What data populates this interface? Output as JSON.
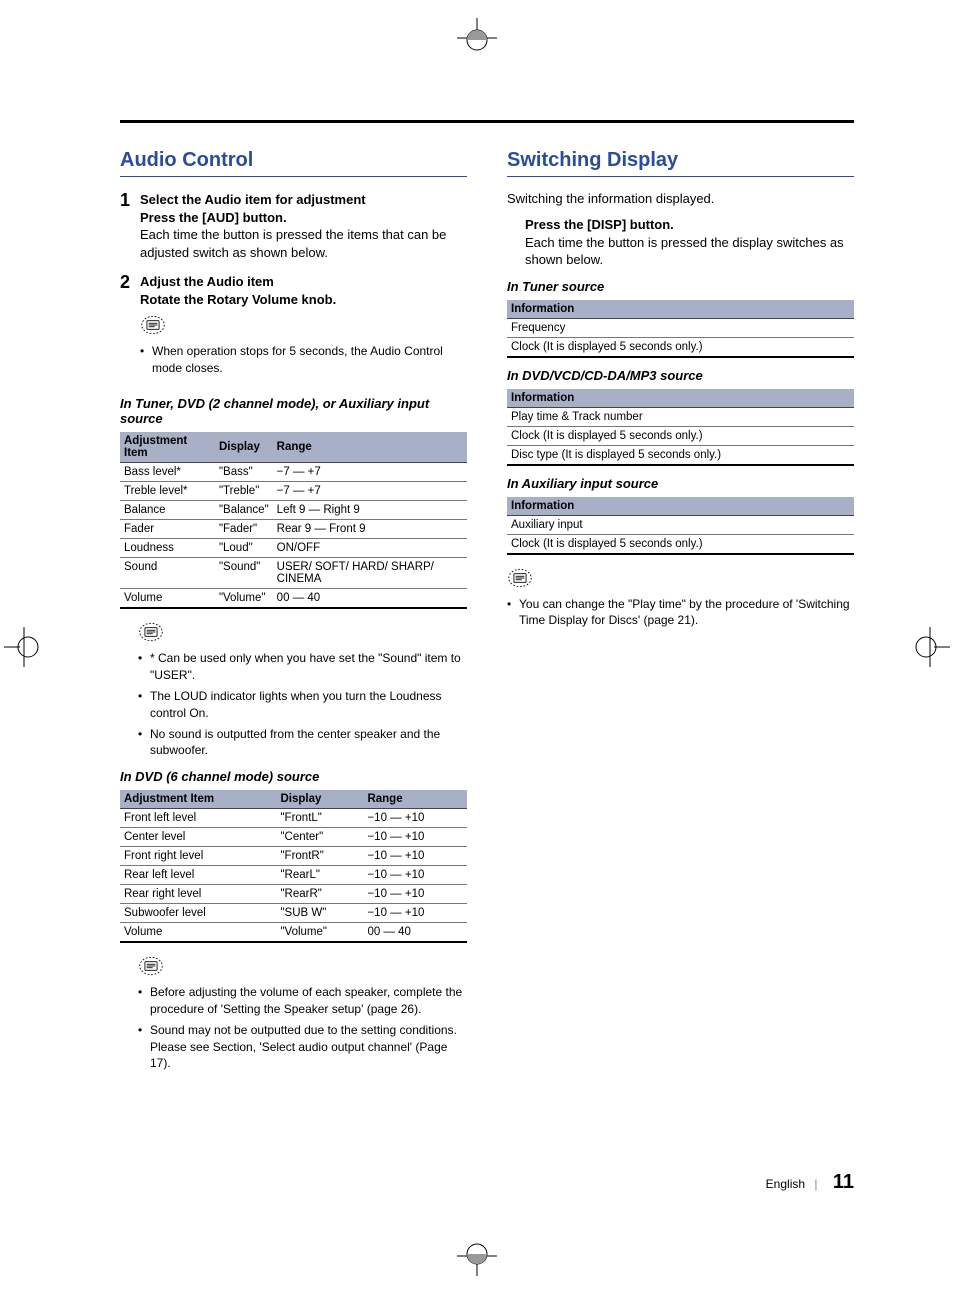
{
  "left": {
    "heading": "Audio Control",
    "step1": {
      "num": "1",
      "title": "Select the Audio item for adjustment",
      "action": "Press the [AUD] button.",
      "desc": "Each time the button is pressed the items that can be adjusted switch as shown below."
    },
    "step2": {
      "num": "2",
      "title": "Adjust the Audio item",
      "action": "Rotate the Rotary Volume knob."
    },
    "step2_note": "When operation stops for 5 seconds, the  Audio Control mode closes.",
    "sub1": "In Tuner, DVD (2 channel mode), or Auxiliary input source",
    "table1": {
      "headers": [
        "Adjustment Item",
        "Display",
        "Range"
      ],
      "rows": [
        [
          "Bass level*",
          "\"Bass\"",
          "−7 — +7"
        ],
        [
          "Treble level*",
          "\"Treble\"",
          "−7 — +7"
        ],
        [
          "Balance",
          "\"Balance\"",
          "Left 9 — Right 9"
        ],
        [
          "Fader",
          "\"Fader\"",
          "Rear 9 — Front 9"
        ],
        [
          "Loudness",
          "\"Loud\"",
          "ON/OFF"
        ],
        [
          "Sound",
          "\"Sound\"",
          "USER/ SOFT/ HARD/ SHARP/ CINEMA"
        ],
        [
          "Volume",
          "\"Volume\"",
          "00  — 40"
        ]
      ]
    },
    "notes1": [
      "* Can be used only when you have set the \"Sound\" item to \"USER\".",
      "The LOUD indicator lights when you turn the Loudness control On.",
      "No sound is outputted from the center speaker and the subwoofer."
    ],
    "sub2": "In DVD (6 channel mode) source",
    "table2": {
      "headers": [
        "Adjustment Item",
        "Display",
        "Range"
      ],
      "rows": [
        [
          "Front left level",
          "\"FrontL\"",
          "−10 — +10"
        ],
        [
          "Center level",
          "\"Center\"",
          "−10 — +10"
        ],
        [
          "Front right level",
          "\"FrontR\"",
          "−10 — +10"
        ],
        [
          "Rear left level",
          "\"RearL\"",
          "−10 — +10"
        ],
        [
          "Rear right level",
          "\"RearR\"",
          "−10 — +10"
        ],
        [
          "Subwoofer level",
          "\"SUB W\"",
          "−10 — +10"
        ],
        [
          "Volume",
          "\"Volume\"",
          "00  — 40"
        ]
      ]
    },
    "notes2": [
      "Before adjusting the volume of each speaker, complete the procedure of 'Setting the Speaker setup' (page 26).",
      "Sound may not be outputted due to the setting conditions. Please see Section, 'Select audio output channel' (Page 17)."
    ]
  },
  "right": {
    "heading": "Switching Display",
    "intro": "Switching the information displayed.",
    "press_title": "Press the [DISP] button.",
    "press_desc": "Each time the button is pressed the display switches as shown below.",
    "sub1": "In Tuner source",
    "t1_header": "Information",
    "t1_rows": [
      "Frequency",
      "Clock (It is displayed 5 seconds only.)"
    ],
    "sub2": "In DVD/VCD/CD-DA/MP3 source",
    "t2_header": "Information",
    "t2_rows": [
      "Play time & Track number",
      "Clock (It is displayed 5 seconds only.)",
      "Disc type (It is displayed 5 seconds only.)"
    ],
    "sub3": "In Auxiliary input source",
    "t3_header": "Information",
    "t3_rows": [
      "Auxiliary input",
      "Clock (It is displayed 5 seconds only.)"
    ],
    "note": "You can change the \"Play time\" by the procedure of 'Switching Time Display for Discs' (page 21)."
  },
  "footer": {
    "lang": "English",
    "page": "11"
  }
}
